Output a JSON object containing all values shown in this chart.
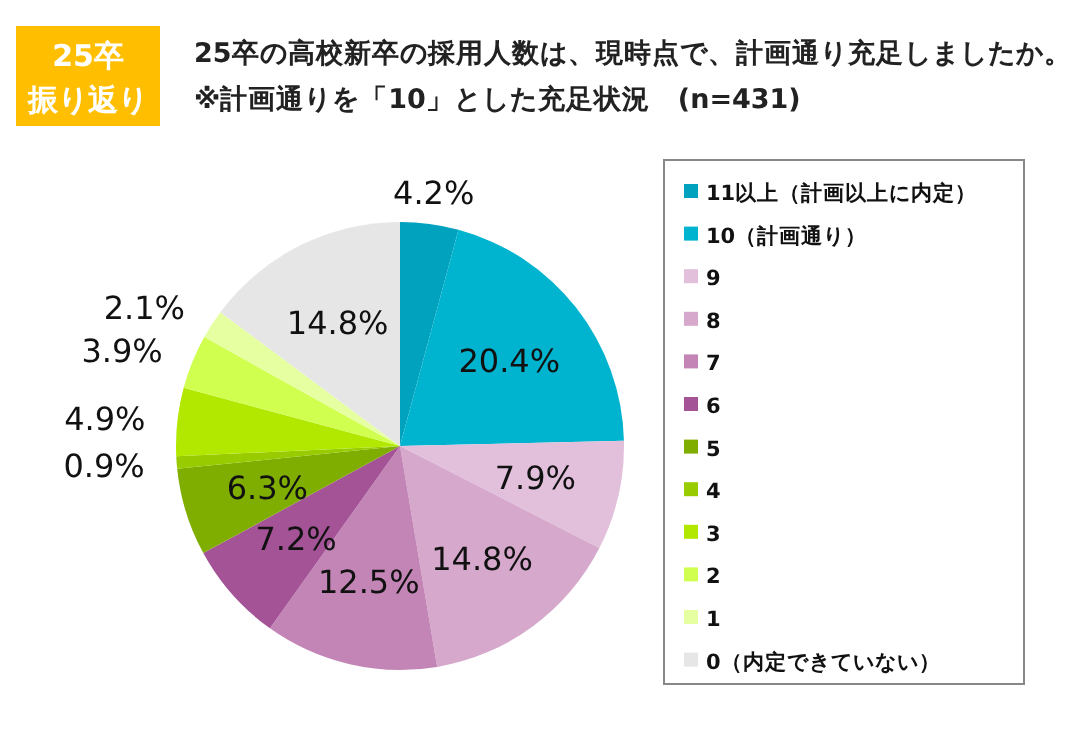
{
  "chart_data": {
    "type": "pie",
    "title": "25卒の高校新卒の採用人数は、現時点で、計画通り充足しましたか。※計画通りを「10」とした充足状況　(n=431)",
    "annotations": [
      "25卒",
      "振り返り"
    ],
    "categories": [
      "11以上（計画以上に内定）",
      "10（計画通り）",
      "9",
      "8",
      "7",
      "6",
      "5",
      "4",
      "3",
      "2",
      "1",
      "0（内定できていない）"
    ],
    "values": [
      4.2,
      20.4,
      7.9,
      14.8,
      12.5,
      7.2,
      6.3,
      0.9,
      4.9,
      3.9,
      2.1,
      14.8
    ],
    "value_labels": [
      "4.2%",
      "20.4%",
      "7.9%",
      "14.8%",
      "12.5%",
      "7.2%",
      "6.3%",
      "0.9%",
      "4.9%",
      "3.9%",
      "2.1%",
      "14.8%"
    ],
    "colors": [
      "#00a2bd",
      "#00b3cf",
      "#e2c0dc",
      "#d6a8cc",
      "#c285b6",
      "#a45396",
      "#7fad00",
      "#98cc00",
      "#b2e800",
      "#d0ff50",
      "#e6ffa0",
      "#e6e6e6"
    ],
    "legend": "right"
  }
}
